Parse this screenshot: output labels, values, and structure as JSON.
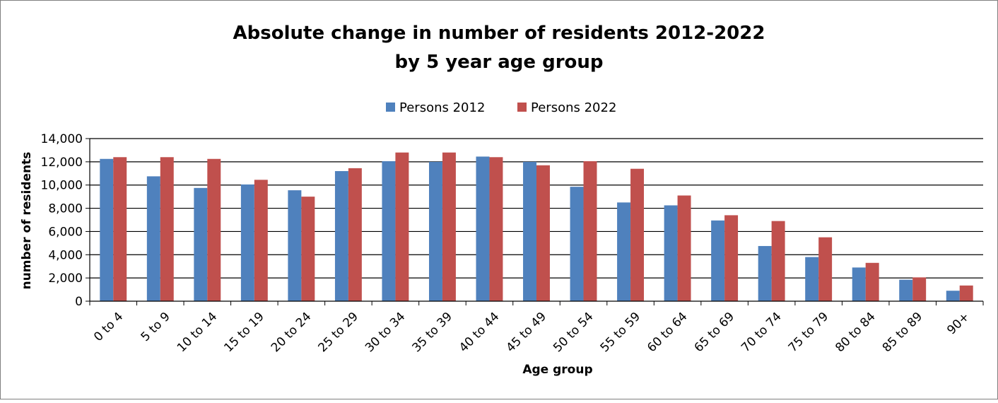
{
  "chart_data": {
    "type": "bar",
    "title": "Absolute change in number of residents 2012-2022",
    "subtitle": "by 5 year age group",
    "xlabel": "Age group",
    "ylabel": "number of residents",
    "categories": [
      "0 to 4",
      "5 to 9",
      "10 to 14",
      "15 to 19",
      "20 to 24",
      "25 to 29",
      "30 to 34",
      "35 to 39",
      "40 to 44",
      "45 to 49",
      "50 to 54",
      "55 to 59",
      "60 to 64",
      "65 to 69",
      "70 to 74",
      "75 to 79",
      "80 to 84",
      "85 to 89",
      "90+"
    ],
    "series": [
      {
        "name": "Persons 2012",
        "color": "#4F81BD",
        "values": [
          12250,
          10750,
          9750,
          10050,
          9550,
          11200,
          12050,
          12000,
          12450,
          12000,
          9850,
          8500,
          8250,
          6950,
          4750,
          3800,
          2900,
          1850,
          900
        ]
      },
      {
        "name": "Persons 2022",
        "color": "#C0504D",
        "values": [
          12400,
          12400,
          12250,
          10450,
          9000,
          11450,
          12800,
          12800,
          12400,
          11700,
          12050,
          11400,
          9100,
          7400,
          6900,
          5500,
          3300,
          2050,
          1350
        ]
      }
    ],
    "ylim": [
      0,
      14000
    ],
    "yticks": [
      "0",
      "2,000",
      "4,000",
      "6,000",
      "8,000",
      "10,000",
      "12,000",
      "14,000"
    ],
    "grid": true,
    "legend_position": "top"
  }
}
